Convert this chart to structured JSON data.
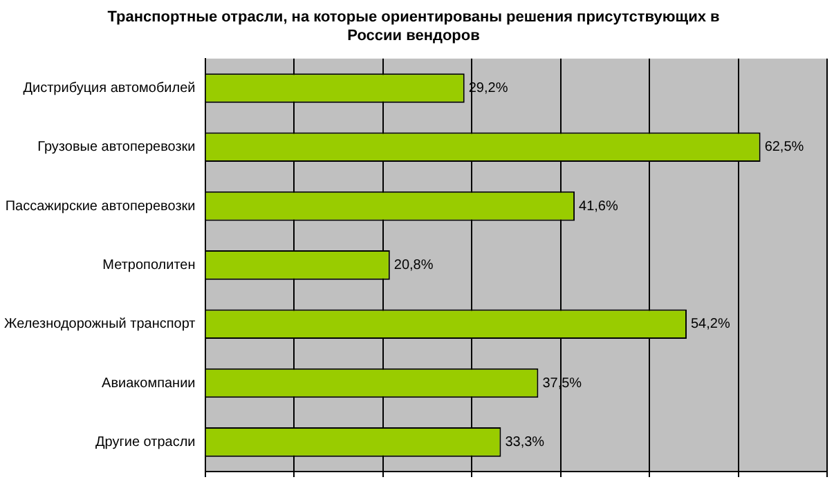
{
  "chart_data": {
    "type": "bar",
    "orientation": "horizontal",
    "title": "Транспортные отрасли, на которые ориентированы решения присутствующих в России вендоров",
    "categories": [
      "Дистрибуция автомобилей",
      "Грузовые автоперевозки",
      "Пассажирские автоперевозки",
      "Метрополитен",
      "Железнодорожный транспорт",
      "Авиакомпании",
      "Другие отрасли"
    ],
    "values": [
      29.2,
      62.5,
      41.6,
      20.8,
      54.2,
      37.5,
      33.3
    ],
    "value_labels": [
      "29,2%",
      "62,5%",
      "41,6%",
      "20,8%",
      "54,2%",
      "37,5%",
      "33,3%"
    ],
    "color": "#99cc00",
    "xlim": [
      0,
      70
    ],
    "xticks": [
      {
        "value": 0,
        "label": null
      },
      {
        "value": 10,
        "label": null
      },
      {
        "value": 20,
        "label": null
      },
      {
        "value": 30,
        "label": null
      },
      {
        "value": 40,
        "label": null
      },
      {
        "value": 50,
        "label": null
      },
      {
        "value": 60,
        "label": null
      },
      {
        "value": 70,
        "label": null
      }
    ],
    "grid": "x",
    "tick_labels": "y",
    "legend": false
  }
}
